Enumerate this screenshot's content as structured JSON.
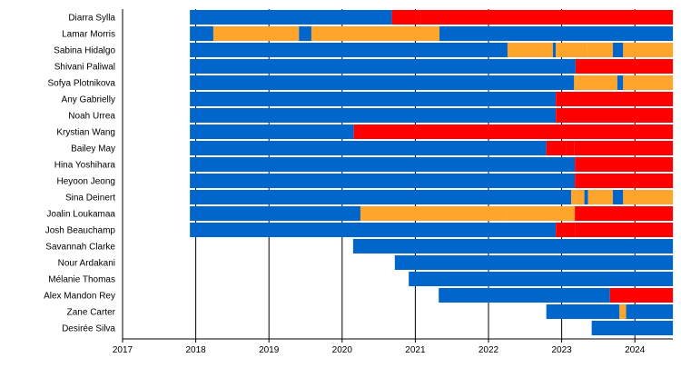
{
  "chart_data": {
    "type": "timeline",
    "xlim": [
      2017,
      2024.52
    ],
    "x_ticks": [
      "2017",
      "2018",
      "2019",
      "2020",
      "2021",
      "2022",
      "2023",
      "2024"
    ],
    "grid": "vertical",
    "colors": {
      "blue": "#0066cc",
      "orange": "#ffa52b",
      "red": "#ff0000"
    },
    "rows": [
      {
        "name": "Diarra Sylla",
        "segments": [
          [
            2017.92,
            2020.68,
            "blue"
          ],
          [
            2020.68,
            2021.07,
            "red"
          ],
          [
            2021.07,
            2024.52,
            "red"
          ]
        ]
      },
      {
        "name": "Lamar Morris",
        "segments": [
          [
            2017.92,
            2018.24,
            "blue"
          ],
          [
            2018.24,
            2019.41,
            "orange"
          ],
          [
            2019.41,
            2019.58,
            "blue"
          ],
          [
            2019.58,
            2021.33,
            "orange"
          ],
          [
            2021.33,
            2024.52,
            "blue"
          ]
        ]
      },
      {
        "name": "Sabina Hidalgo",
        "segments": [
          [
            2017.92,
            2022.26,
            "blue"
          ],
          [
            2022.26,
            2022.88,
            "orange"
          ],
          [
            2022.88,
            2022.92,
            "blue"
          ],
          [
            2022.92,
            2023.35,
            "orange"
          ],
          [
            2023.35,
            2023.7,
            "orange"
          ],
          [
            2023.7,
            2023.84,
            "blue"
          ],
          [
            2023.84,
            2024.52,
            "orange"
          ]
        ]
      },
      {
        "name": "Shivani Paliwal",
        "segments": [
          [
            2017.92,
            2023.19,
            "blue"
          ],
          [
            2023.19,
            2024.52,
            "red"
          ]
        ]
      },
      {
        "name": "Sofya Plotnikova",
        "segments": [
          [
            2017.92,
            2023.17,
            "blue"
          ],
          [
            2023.17,
            2023.76,
            "orange"
          ],
          [
            2023.76,
            2023.84,
            "blue"
          ],
          [
            2023.84,
            2024.52,
            "orange"
          ]
        ]
      },
      {
        "name": "Any Gabrielly",
        "segments": [
          [
            2017.92,
            2022.92,
            "blue"
          ],
          [
            2022.92,
            2024.52,
            "red"
          ]
        ]
      },
      {
        "name": "Noah Urrea",
        "segments": [
          [
            2017.92,
            2022.92,
            "blue"
          ],
          [
            2022.92,
            2024.52,
            "red"
          ]
        ]
      },
      {
        "name": "Krystian Wang",
        "segments": [
          [
            2017.92,
            2020.16,
            "blue"
          ],
          [
            2020.16,
            2024.52,
            "red"
          ]
        ]
      },
      {
        "name": "Bailey May",
        "segments": [
          [
            2017.92,
            2022.79,
            "blue"
          ],
          [
            2022.79,
            2023.06,
            "red"
          ],
          [
            2023.06,
            2023.17,
            "red"
          ],
          [
            2023.17,
            2024.52,
            "red"
          ]
        ]
      },
      {
        "name": "Hina Yoshihara",
        "segments": [
          [
            2017.92,
            2023.18,
            "blue"
          ],
          [
            2023.18,
            2024.52,
            "red"
          ]
        ]
      },
      {
        "name": "Heyoon Jeong",
        "segments": [
          [
            2017.92,
            2023.18,
            "blue"
          ],
          [
            2023.18,
            2024.52,
            "red"
          ]
        ]
      },
      {
        "name": "Sina Deinert",
        "segments": [
          [
            2017.92,
            2023.13,
            "blue"
          ],
          [
            2023.13,
            2023.31,
            "orange"
          ],
          [
            2023.31,
            2023.36,
            "blue"
          ],
          [
            2023.36,
            2023.7,
            "orange"
          ],
          [
            2023.7,
            2023.84,
            "blue"
          ],
          [
            2023.84,
            2024.52,
            "orange"
          ]
        ]
      },
      {
        "name": "Joalin Loukamaa",
        "segments": [
          [
            2017.92,
            2020.25,
            "blue"
          ],
          [
            2020.25,
            2020.84,
            "orange"
          ],
          [
            2020.84,
            2022.26,
            "orange"
          ],
          [
            2022.26,
            2023.18,
            "orange"
          ],
          [
            2023.18,
            2024.52,
            "red"
          ]
        ]
      },
      {
        "name": "Josh Beauchamp",
        "segments": [
          [
            2017.92,
            2022.92,
            "blue"
          ],
          [
            2022.92,
            2023.18,
            "red"
          ],
          [
            2023.18,
            2024.52,
            "red"
          ]
        ]
      },
      {
        "name": "Savannah Clarke",
        "segments": [
          [
            2020.15,
            2024.52,
            "blue"
          ]
        ]
      },
      {
        "name": "Nour Ardakani",
        "segments": [
          [
            2020.72,
            2024.52,
            "blue"
          ]
        ]
      },
      {
        "name": "Mélanie Thomas",
        "segments": [
          [
            2020.91,
            2024.52,
            "blue"
          ]
        ]
      },
      {
        "name": "Alex Mandon Rey",
        "segments": [
          [
            2021.32,
            2023.66,
            "blue"
          ],
          [
            2023.66,
            2024.52,
            "red"
          ]
        ]
      },
      {
        "name": "Zane Carter",
        "segments": [
          [
            2022.79,
            2023.79,
            "blue"
          ],
          [
            2023.79,
            2023.88,
            "orange"
          ],
          [
            2023.88,
            2024.52,
            "blue"
          ]
        ]
      },
      {
        "name": "Desirée Silva",
        "segments": [
          [
            2023.41,
            2024.52,
            "blue"
          ]
        ]
      }
    ]
  }
}
